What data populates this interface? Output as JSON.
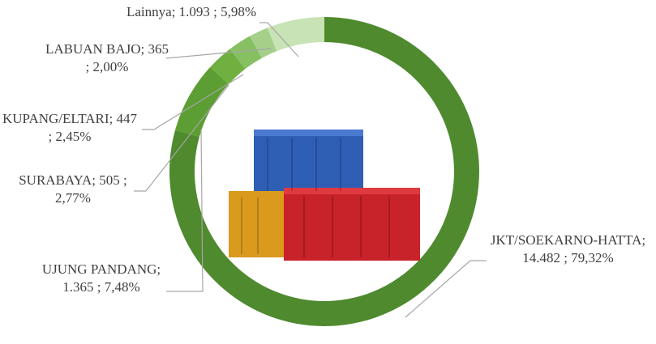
{
  "chart_data": {
    "type": "donut",
    "categories": [
      "JKT/SOEKARNO-HATTA",
      "UJUNG PANDANG",
      "SURABAYA",
      "KUPANG/ELTARI",
      "LABUAN BAJO",
      "Lainnya"
    ],
    "values": [
      14482,
      1365,
      505,
      447,
      365,
      1093
    ],
    "value_labels": [
      "14.482",
      "1.365",
      "505",
      "447",
      "365",
      "1.093"
    ],
    "percent_labels": [
      "79,32%",
      "7,48%",
      "2,77%",
      "2,45%",
      "2,00%",
      "5,98%"
    ],
    "separator": ";",
    "colors": [
      "#4f8a2f",
      "#5c9e33",
      "#6fb040",
      "#86c062",
      "#a6d089",
      "#c8e3b5"
    ]
  }
}
